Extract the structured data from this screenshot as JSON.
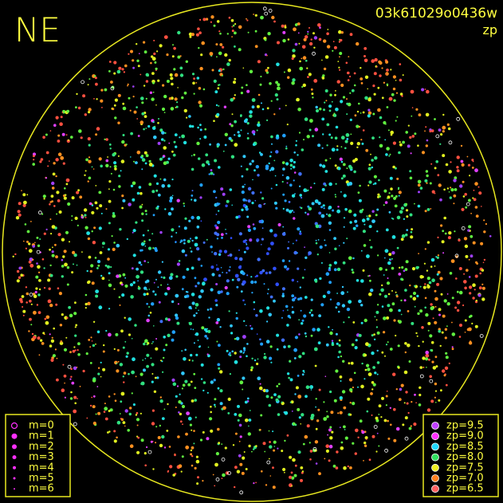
{
  "header": {
    "label": "NE",
    "image_id": "03k61029o0436w",
    "mode": "zp"
  },
  "legend_m": [
    "m=0",
    "m=1",
    "m=2",
    "m=3",
    "m=4",
    "m=5",
    "m=6"
  ],
  "legend_zp": [
    "zp=9.5",
    "zp=9.0",
    "zp=8.5",
    "zp=8.0",
    "zp=7.5",
    "zp=7.0",
    "zp=6.5"
  ]
}
